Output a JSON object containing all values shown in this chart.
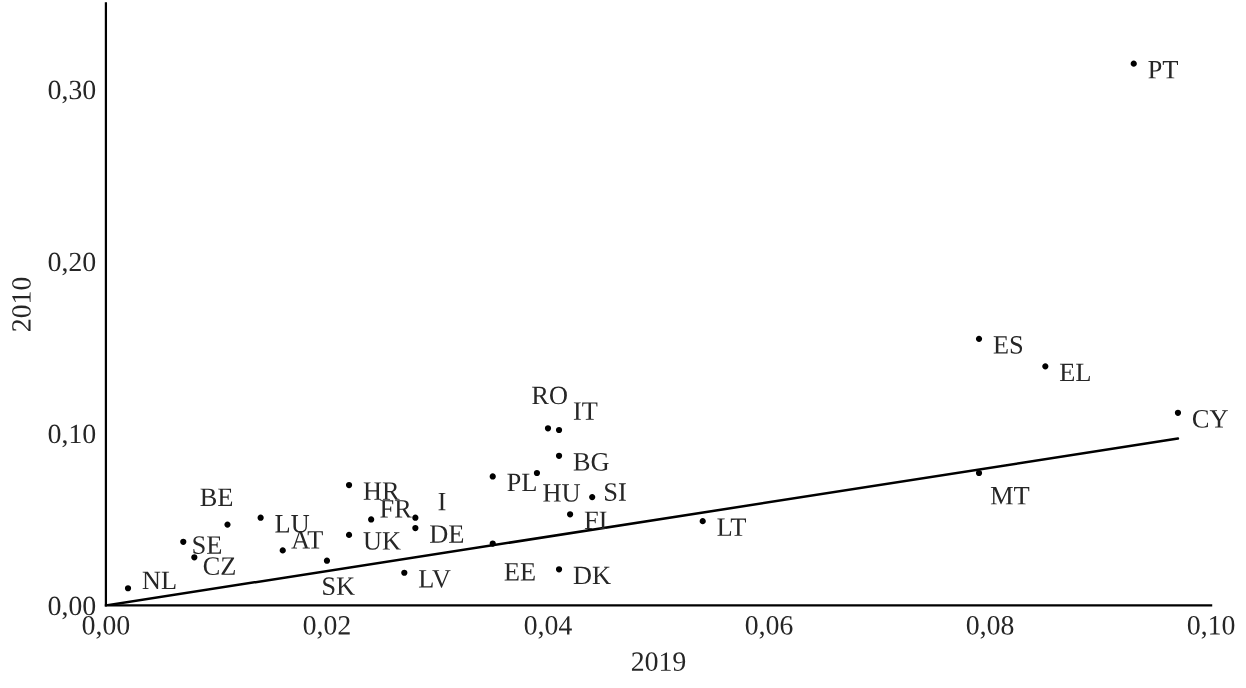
{
  "chart_data": {
    "type": "scatter",
    "xlabel": "2019",
    "ylabel": "2010",
    "xlim": [
      0,
      0.1
    ],
    "ylim": [
      0,
      0.35
    ],
    "xticks": [
      {
        "value": 0,
        "label": "0,00"
      },
      {
        "value": 0.02,
        "label": "0,02"
      },
      {
        "value": 0.04,
        "label": "0,04"
      },
      {
        "value": 0.06,
        "label": "0,06"
      },
      {
        "value": 0.08,
        "label": "0,08"
      },
      {
        "value": 0.1,
        "label": "0,10"
      }
    ],
    "yticks": [
      {
        "value": 0,
        "label": "0,00"
      },
      {
        "value": 0.1,
        "label": "0,10"
      },
      {
        "value": 0.2,
        "label": "0,20"
      },
      {
        "value": 0.3,
        "label": "0,30"
      }
    ],
    "grid": false,
    "legend": false,
    "series": [
      {
        "color": "#000000",
        "marker": "circle",
        "x": [
          0.093,
          0.079,
          0.085,
          0.097,
          0.079,
          0.054,
          0.04,
          0.041,
          0.041,
          0.035,
          0.039,
          0.044,
          0.042,
          0.035,
          0.041,
          0.027,
          0.028,
          0.028,
          0.024,
          0.022,
          0.022,
          0.02,
          0.016,
          0.014,
          0.011,
          0.007,
          0.008,
          0.002
        ],
        "values": [
          0.315,
          0.155,
          0.139,
          0.112,
          0.077,
          0.049,
          0.103,
          0.102,
          0.087,
          0.075,
          0.077,
          0.063,
          0.053,
          0.036,
          0.021,
          0.019,
          0.051,
          0.045,
          0.05,
          0.07,
          0.041,
          0.026,
          0.032,
          0.051,
          0.047,
          0.037,
          0.028,
          0.01
        ]
      },
      {
        "type": "line",
        "color": "#000000",
        "x": [
          0,
          0.097
        ],
        "values": [
          0,
          0.097
        ],
        "line_style": "solid"
      }
    ],
    "annotations": [
      {
        "text": "PT",
        "x": 0.093,
        "y": 0.315
      },
      {
        "text": "ES",
        "x": 0.079,
        "y": 0.155
      },
      {
        "text": "EL",
        "x": 0.085,
        "y": 0.139
      },
      {
        "text": "CY",
        "x": 0.097,
        "y": 0.112
      },
      {
        "text": "MT",
        "x": 0.079,
        "y": 0.077
      },
      {
        "text": "LT",
        "x": 0.054,
        "y": 0.049
      },
      {
        "text": "RO",
        "x": 0.04,
        "y": 0.103
      },
      {
        "text": "IT",
        "x": 0.041,
        "y": 0.102
      },
      {
        "text": "BG",
        "x": 0.041,
        "y": 0.087
      },
      {
        "text": "PL",
        "x": 0.035,
        "y": 0.075
      },
      {
        "text": "HU",
        "x": 0.039,
        "y": 0.077
      },
      {
        "text": "SI",
        "x": 0.044,
        "y": 0.063
      },
      {
        "text": "FI",
        "x": 0.042,
        "y": 0.053
      },
      {
        "text": "EE",
        "x": 0.035,
        "y": 0.036
      },
      {
        "text": "DK",
        "x": 0.041,
        "y": 0.021
      },
      {
        "text": "LV",
        "x": 0.027,
        "y": 0.019
      },
      {
        "text": "I",
        "x": 0.028,
        "y": 0.051
      },
      {
        "text": "DE",
        "x": 0.028,
        "y": 0.045
      },
      {
        "text": "FR",
        "x": 0.024,
        "y": 0.05
      },
      {
        "text": "HR",
        "x": 0.022,
        "y": 0.07
      },
      {
        "text": "UK",
        "x": 0.022,
        "y": 0.041
      },
      {
        "text": "SK",
        "x": 0.02,
        "y": 0.026
      },
      {
        "text": "AT",
        "x": 0.016,
        "y": 0.032
      },
      {
        "text": "LU",
        "x": 0.014,
        "y": 0.051
      },
      {
        "text": "BE",
        "x": 0.011,
        "y": 0.047
      },
      {
        "text": "SE",
        "x": 0.007,
        "y": 0.037
      },
      {
        "text": "CZ",
        "x": 0.008,
        "y": 0.028
      },
      {
        "text": "NL",
        "x": 0.002,
        "y": 0.01
      }
    ]
  }
}
